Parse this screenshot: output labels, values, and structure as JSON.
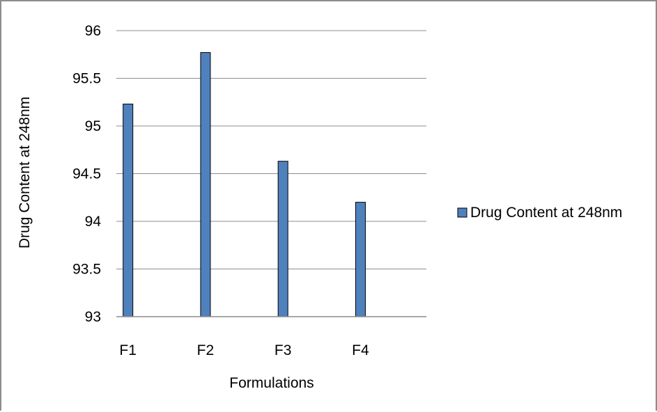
{
  "chart_data": {
    "type": "bar",
    "categories": [
      "F1",
      "F2",
      "F3",
      "F4"
    ],
    "series": [
      {
        "name": "Drug Content at 248nm",
        "values": [
          95.23,
          95.77,
          94.63,
          94.2
        ],
        "color": "#4f81bd"
      }
    ],
    "xlabel": "Formulations",
    "ylabel": "Drug Content at 248nm",
    "ylim": [
      93,
      96
    ],
    "yticks": [
      "93",
      "93.5",
      "94",
      "94.5",
      "95",
      "95.5",
      "96"
    ],
    "grid": true,
    "legend_position": "right"
  }
}
